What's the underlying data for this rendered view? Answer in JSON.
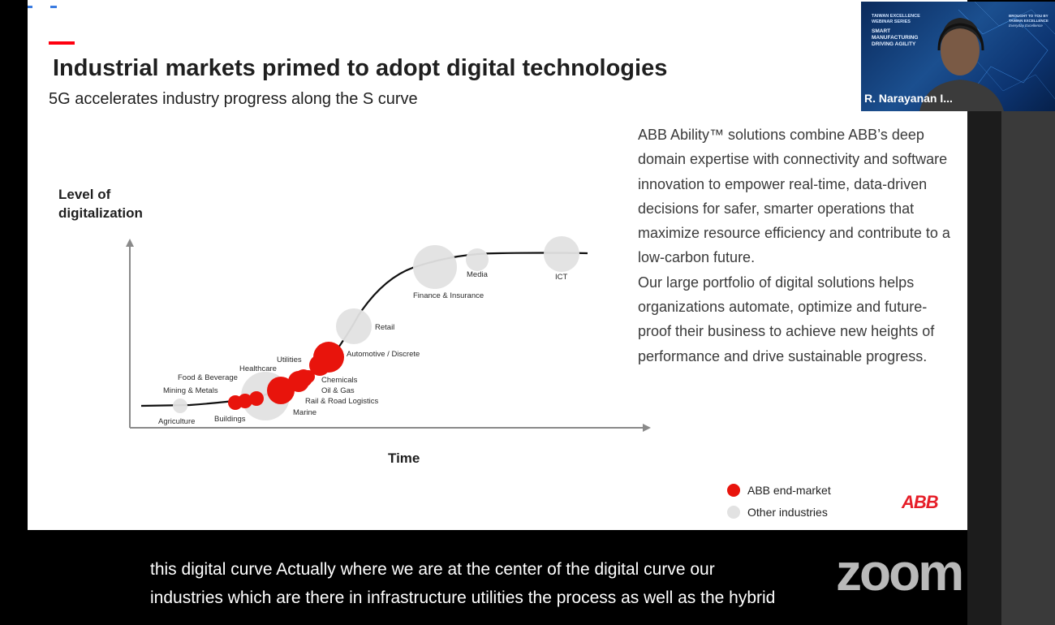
{
  "slide": {
    "title": "Industrial markets primed to adopt digital technologies",
    "subtitle": "5G accelerates industry progress along the S curve",
    "body_paragraphs": [
      "ABB Ability™ solutions combine ABB’s deep domain expertise with connectivity and software innovation to empower real-time, data-driven decisions for safer, smarter operations that maximize resource efficiency and contribute to a low-carbon future.",
      "Our large portfolio of digital solutions helps organizations automate, optimize and future-proof their business to achieve new heights of performance and drive sustainable progress."
    ],
    "legend": [
      {
        "label": "ABB end-market",
        "color": "#e8140c"
      },
      {
        "label": "Other industries",
        "color": "#e2e2e2"
      }
    ],
    "logo_text": "ABB"
  },
  "chart_data": {
    "type": "scatter",
    "ylabel": "Level of\ndigitalization",
    "xlabel": "Time",
    "legend_position": "bottom-right",
    "colors": {
      "abb": "#e8140c",
      "other": "#e2e2e2",
      "curve": "#111111"
    },
    "industries": [
      {
        "label": "Agriculture",
        "group": "other",
        "x": 0.7,
        "y": 0.04,
        "size": 1
      },
      {
        "label": "Buildings",
        "group": "abb",
        "x": 1.6,
        "y": 0.05,
        "size": 1
      },
      {
        "label": "Mining & Metals",
        "group": "abb",
        "x": 1.8,
        "y": 0.06,
        "size": 1
      },
      {
        "label": "Food & Beverage",
        "group": "abb",
        "x": 2.0,
        "y": 0.07,
        "size": 1
      },
      {
        "label": "Healthcare",
        "group": "other",
        "x": 2.2,
        "y": 0.08,
        "size": 3
      },
      {
        "label": "Marine",
        "group": "abb",
        "x": 2.5,
        "y": 0.1,
        "size": 2
      },
      {
        "label": "Rail & Road Logistics",
        "group": "abb",
        "x": 2.7,
        "y": 0.12,
        "size": 1.5
      },
      {
        "label": "Oil & Gas",
        "group": "abb",
        "x": 2.9,
        "y": 0.14,
        "size": 1.3
      },
      {
        "label": "Chemicals",
        "group": "abb",
        "x": 3.1,
        "y": 0.16,
        "size": 1
      },
      {
        "label": "Utilities",
        "group": "abb",
        "x": 3.4,
        "y": 0.2,
        "size": 1.3
      },
      {
        "label": "Automotive / Discrete",
        "group": "abb",
        "x": 3.6,
        "y": 0.23,
        "size": 2
      },
      {
        "label": "Retail",
        "group": "other",
        "x": 4.0,
        "y": 0.33,
        "size": 2
      },
      {
        "label": "Finance & Insurance",
        "group": "other",
        "x": 5.4,
        "y": 0.55,
        "size": 3
      },
      {
        "label": "Media",
        "group": "other",
        "x": 6.1,
        "y": 0.58,
        "size": 1
      },
      {
        "label": "ICT",
        "group": "other",
        "x": 7.4,
        "y": 0.6,
        "size": 2
      }
    ]
  },
  "video": {
    "speaker_name": "R. Narayanan I...",
    "banner_lines": [
      "TAIWAN EXCELLENCE",
      "WEBINAR SERIES",
      "SMART",
      "MANUFACTURING",
      "DRIVING AGILITY"
    ],
    "sponsor_lines": [
      "BROUGHT TO YOU BY",
      "TAIWAN EXCELLENCE",
      "Everyday Excellence"
    ]
  },
  "caption": {
    "lines": [
      "this digital curve Actually where we are at the center of the digital curve our",
      "industries which are there in infrastructure utilities the process as well as the hybrid"
    ]
  },
  "watermark": "zoom"
}
